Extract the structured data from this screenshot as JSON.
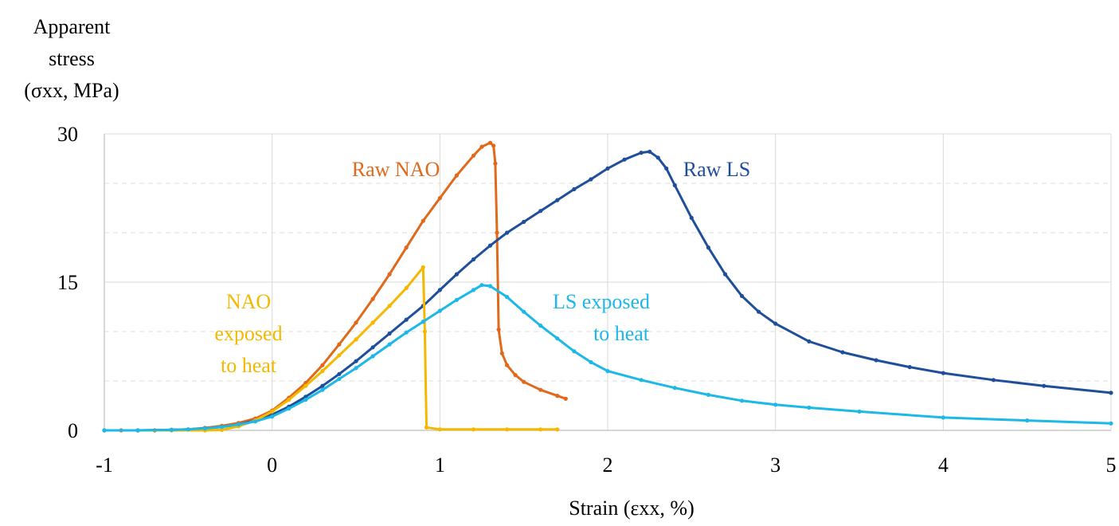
{
  "chart_data": {
    "type": "scatter",
    "title": "",
    "ylabel": [
      "Apparent",
      "stress",
      "(σxx, MPa)"
    ],
    "xlabel": "Strain (εxx, %)",
    "xlim": [
      -1,
      5
    ],
    "ylim": [
      0,
      30
    ],
    "x_ticks": [
      "-1",
      "0",
      "1",
      "2",
      "3",
      "4",
      "5"
    ],
    "y_ticks": [
      "0",
      "15",
      "30"
    ],
    "grid": true,
    "legend": "none",
    "series": [
      {
        "name": "Raw NAO",
        "label_lines": [
          "Raw NAO"
        ],
        "color": "#E0691B",
        "points": [
          [
            -1,
            0
          ],
          [
            -0.9,
            0
          ],
          [
            -0.8,
            0
          ],
          [
            -0.7,
            0
          ],
          [
            -0.6,
            0.05
          ],
          [
            -0.5,
            0.1
          ],
          [
            -0.4,
            0.25
          ],
          [
            -0.3,
            0.45
          ],
          [
            -0.2,
            0.75
          ],
          [
            -0.1,
            1.2
          ],
          [
            0,
            2
          ],
          [
            0.1,
            3.3
          ],
          [
            0.2,
            4.8
          ],
          [
            0.3,
            6.6
          ],
          [
            0.4,
            8.7
          ],
          [
            0.5,
            10.9
          ],
          [
            0.6,
            13.3
          ],
          [
            0.7,
            15.8
          ],
          [
            0.8,
            18.5
          ],
          [
            0.9,
            21.2
          ],
          [
            1.0,
            23.5
          ],
          [
            1.1,
            25.8
          ],
          [
            1.2,
            27.8
          ],
          [
            1.25,
            28.7
          ],
          [
            1.3,
            29.1
          ],
          [
            1.32,
            28.8
          ],
          [
            1.33,
            27.0
          ],
          [
            1.34,
            20.0
          ],
          [
            1.35,
            10.2
          ],
          [
            1.37,
            7.8
          ],
          [
            1.4,
            6.6
          ],
          [
            1.45,
            5.6
          ],
          [
            1.5,
            4.9
          ],
          [
            1.6,
            4.1
          ],
          [
            1.7,
            3.5
          ],
          [
            1.75,
            3.2
          ]
        ]
      },
      {
        "name": "Raw LS",
        "label_lines": [
          "Raw LS"
        ],
        "color": "#1F4E9A",
        "points": [
          [
            -1,
            0
          ],
          [
            -0.8,
            0
          ],
          [
            -0.6,
            0.05
          ],
          [
            -0.5,
            0.1
          ],
          [
            -0.4,
            0.2
          ],
          [
            -0.3,
            0.35
          ],
          [
            -0.2,
            0.6
          ],
          [
            -0.1,
            1.0
          ],
          [
            0,
            1.6
          ],
          [
            0.1,
            2.4
          ],
          [
            0.2,
            3.4
          ],
          [
            0.3,
            4.5
          ],
          [
            0.4,
            5.7
          ],
          [
            0.5,
            7.0
          ],
          [
            0.6,
            8.4
          ],
          [
            0.7,
            9.8
          ],
          [
            0.8,
            11.2
          ],
          [
            0.9,
            12.6
          ],
          [
            1.0,
            14.2
          ],
          [
            1.1,
            15.8
          ],
          [
            1.2,
            17.3
          ],
          [
            1.3,
            18.7
          ],
          [
            1.4,
            20.0
          ],
          [
            1.5,
            21.1
          ],
          [
            1.6,
            22.2
          ],
          [
            1.7,
            23.3
          ],
          [
            1.8,
            24.4
          ],
          [
            1.9,
            25.4
          ],
          [
            2.0,
            26.5
          ],
          [
            2.1,
            27.4
          ],
          [
            2.2,
            28.1
          ],
          [
            2.25,
            28.2
          ],
          [
            2.3,
            27.6
          ],
          [
            2.35,
            26.5
          ],
          [
            2.4,
            24.8
          ],
          [
            2.5,
            21.5
          ],
          [
            2.6,
            18.5
          ],
          [
            2.7,
            15.8
          ],
          [
            2.8,
            13.6
          ],
          [
            2.9,
            12.0
          ],
          [
            3.0,
            10.8
          ],
          [
            3.2,
            9.0
          ],
          [
            3.4,
            7.9
          ],
          [
            3.6,
            7.1
          ],
          [
            3.8,
            6.4
          ],
          [
            4.0,
            5.8
          ],
          [
            4.3,
            5.1
          ],
          [
            4.6,
            4.5
          ],
          [
            5.0,
            3.8
          ]
        ]
      },
      {
        "name": "NAO exposed to heat",
        "label_lines": [
          "NAO",
          "exposed",
          "to heat"
        ],
        "color": "#F5B800",
        "points": [
          [
            -1,
            0
          ],
          [
            -0.8,
            0
          ],
          [
            -0.6,
            0
          ],
          [
            -0.4,
            0
          ],
          [
            -0.3,
            0.05
          ],
          [
            -0.2,
            0.4
          ],
          [
            -0.1,
            1.0
          ],
          [
            0,
            1.9
          ],
          [
            0.1,
            3.1
          ],
          [
            0.2,
            4.5
          ],
          [
            0.3,
            6.0
          ],
          [
            0.4,
            7.6
          ],
          [
            0.5,
            9.2
          ],
          [
            0.6,
            10.9
          ],
          [
            0.7,
            12.6
          ],
          [
            0.8,
            14.4
          ],
          [
            0.9,
            16.5
          ],
          [
            0.91,
            10.0
          ],
          [
            0.92,
            0.3
          ],
          [
            1.0,
            0.1
          ],
          [
            1.2,
            0.1
          ],
          [
            1.4,
            0.1
          ],
          [
            1.6,
            0.1
          ],
          [
            1.7,
            0.1
          ]
        ]
      },
      {
        "name": "LS exposed to heat",
        "label_lines": [
          "LS exposed",
          "to heat"
        ],
        "color": "#1BB8E8",
        "points": [
          [
            -1,
            0
          ],
          [
            -0.8,
            0
          ],
          [
            -0.6,
            0.05
          ],
          [
            -0.5,
            0.1
          ],
          [
            -0.4,
            0.2
          ],
          [
            -0.3,
            0.35
          ],
          [
            -0.2,
            0.6
          ],
          [
            -0.1,
            0.9
          ],
          [
            0,
            1.4
          ],
          [
            0.1,
            2.2
          ],
          [
            0.2,
            3.1
          ],
          [
            0.3,
            4.1
          ],
          [
            0.4,
            5.2
          ],
          [
            0.5,
            6.3
          ],
          [
            0.6,
            7.5
          ],
          [
            0.7,
            8.7
          ],
          [
            0.8,
            9.9
          ],
          [
            0.9,
            11.0
          ],
          [
            1.0,
            12.1
          ],
          [
            1.1,
            13.2
          ],
          [
            1.2,
            14.2
          ],
          [
            1.25,
            14.7
          ],
          [
            1.3,
            14.6
          ],
          [
            1.4,
            13.5
          ],
          [
            1.5,
            12.0
          ],
          [
            1.6,
            10.6
          ],
          [
            1.7,
            9.3
          ],
          [
            1.8,
            8.0
          ],
          [
            1.9,
            6.9
          ],
          [
            2.0,
            6.0
          ],
          [
            2.2,
            5.1
          ],
          [
            2.4,
            4.3
          ],
          [
            2.6,
            3.6
          ],
          [
            2.8,
            3.0
          ],
          [
            3.0,
            2.6
          ],
          [
            3.2,
            2.3
          ],
          [
            3.5,
            1.9
          ],
          [
            4.0,
            1.3
          ],
          [
            4.5,
            1.0
          ],
          [
            5.0,
            0.7
          ]
        ]
      }
    ]
  }
}
